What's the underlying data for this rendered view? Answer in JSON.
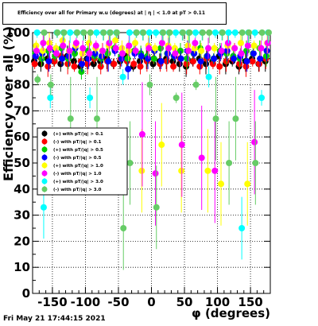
{
  "chart_data": {
    "type": "scatter",
    "title": "Efficiency over all for Primary w.u (degrees) at | η | < 1.0 at pT > 0.11",
    "xlabel": "φ (degrees)",
    "ylabel": "Efficiency over all (%)",
    "xlim": [
      -180,
      180
    ],
    "ylim": [
      0,
      100
    ],
    "x_ticks": [
      -150,
      -100,
      -50,
      0,
      50,
      100,
      150
    ],
    "y_ticks": [
      0,
      10,
      20,
      30,
      40,
      50,
      60,
      70,
      80,
      90,
      100
    ],
    "grid": true,
    "legend_position": "left-middle",
    "series": [
      {
        "name": "(+) with pT/|q| > 0.1",
        "color": "#000000",
        "x": [
          -175,
          -165,
          -155,
          -145,
          -135,
          -125,
          -115,
          -105,
          -95,
          -85,
          -75,
          -65,
          -55,
          -45,
          -35,
          -25,
          -15,
          -5,
          5,
          15,
          25,
          35,
          45,
          55,
          65,
          75,
          85,
          95,
          105,
          115,
          125,
          135,
          145,
          155,
          165,
          175
        ],
        "y": [
          89,
          88,
          90,
          89,
          88,
          91,
          89,
          87,
          90,
          88,
          89,
          90,
          88,
          89,
          91,
          87,
          89,
          90,
          88,
          89,
          90,
          89,
          88,
          87,
          89,
          90,
          88,
          89,
          91,
          88,
          89,
          87,
          89,
          90,
          88,
          89
        ]
      },
      {
        "name": "(-) with pT/|q| > 0.1",
        "color": "#ff0000",
        "x": [
          -175,
          -165,
          -155,
          -145,
          -135,
          -125,
          -115,
          -105,
          -95,
          -85,
          -75,
          -65,
          -55,
          -45,
          -35,
          -25,
          -15,
          -5,
          5,
          15,
          25,
          35,
          45,
          55,
          65,
          75,
          85,
          95,
          105,
          115,
          125,
          135,
          145,
          155,
          165,
          175
        ],
        "y": [
          88,
          90,
          87,
          89,
          91,
          88,
          87,
          89,
          88,
          90,
          87,
          89,
          88,
          90,
          89,
          88,
          87,
          89,
          90,
          88,
          89,
          87,
          90,
          88,
          89,
          87,
          90,
          88,
          87,
          89,
          90,
          88,
          87,
          89,
          88,
          90
        ]
      },
      {
        "name": "(+) with pT/|q| > 0.5",
        "color": "#00cc00",
        "x": [
          -175,
          -165,
          -155,
          -145,
          -135,
          -125,
          -115,
          -105,
          -95,
          -85,
          -75,
          -65,
          -55,
          -45,
          -35,
          -25,
          -15,
          -5,
          5,
          15,
          25,
          35,
          45,
          55,
          65,
          75,
          85,
          95,
          105,
          115,
          125,
          135,
          145,
          155,
          165,
          175
        ],
        "y": [
          92,
          90,
          93,
          91,
          94,
          90,
          92,
          85,
          93,
          91,
          90,
          92,
          94,
          91,
          90,
          93,
          92,
          91,
          90,
          94,
          92,
          91,
          93,
          90,
          92,
          94,
          91,
          90,
          93,
          92,
          91,
          90,
          93,
          92,
          94,
          91
        ]
      },
      {
        "name": "(-) with pT/|q| > 0.5",
        "color": "#0000ff",
        "x": [
          -175,
          -165,
          -155,
          -145,
          -135,
          -125,
          -115,
          -105,
          -95,
          -85,
          -75,
          -65,
          -55,
          -45,
          -35,
          -25,
          -15,
          -5,
          5,
          15,
          25,
          35,
          45,
          55,
          65,
          75,
          85,
          95,
          105,
          115,
          125,
          135,
          145,
          155,
          165,
          175
        ],
        "y": [
          91,
          92,
          89,
          93,
          90,
          91,
          94,
          88,
          90,
          92,
          91,
          89,
          93,
          90,
          86,
          92,
          91,
          90,
          93,
          89,
          92,
          91,
          90,
          93,
          92,
          89,
          91,
          90,
          92,
          93,
          90,
          91,
          89,
          92,
          90,
          93
        ]
      },
      {
        "name": "(+) with pT/|q| > 1.0",
        "color": "#ffff00",
        "x": [
          -175,
          -165,
          -155,
          -145,
          -135,
          -125,
          -115,
          -105,
          -95,
          -85,
          -75,
          -65,
          -55,
          -45,
          -35,
          -25,
          -15,
          -5,
          5,
          15,
          25,
          35,
          45,
          55,
          65,
          75,
          85,
          95,
          105,
          115,
          125,
          135,
          145,
          155,
          165,
          175
        ],
        "y": [
          95,
          93,
          96,
          94,
          97,
          93,
          95,
          92,
          96,
          94,
          93,
          95,
          97,
          94,
          93,
          96,
          47,
          95,
          94,
          57,
          95,
          94,
          47,
          95,
          94,
          93,
          47,
          94,
          42,
          95,
          94,
          96,
          42,
          95,
          94,
          96
        ]
      },
      {
        "name": "(-) with pT/|q| > 1.0",
        "color": "#ff00ff",
        "x": [
          -175,
          -165,
          -155,
          -145,
          -135,
          -125,
          -115,
          -105,
          -95,
          -85,
          -75,
          -65,
          -55,
          -45,
          -35,
          -25,
          -15,
          -5,
          5,
          15,
          25,
          35,
          45,
          55,
          65,
          75,
          85,
          95,
          105,
          115,
          125,
          135,
          145,
          155,
          165,
          175
        ],
        "y": [
          93,
          96,
          94,
          92,
          95,
          93,
          96,
          94,
          92,
          95,
          93,
          96,
          94,
          92,
          95,
          93,
          61,
          94,
          46,
          96,
          94,
          92,
          57,
          93,
          96,
          52,
          94,
          47,
          93,
          96,
          94,
          92,
          95,
          58,
          94,
          96
        ]
      },
      {
        "name": "(+) with pT/|q| > 3.0",
        "color": "#00ffff",
        "x": [
          -175,
          -165,
          -155,
          -145,
          -135,
          -125,
          -115,
          -105,
          -95,
          -85,
          -75,
          -65,
          -55,
          -45,
          -35,
          -25,
          -15,
          -5,
          5,
          15,
          25,
          35,
          45,
          55,
          65,
          75,
          85,
          95,
          105,
          115,
          125,
          135,
          145,
          155,
          165,
          175
        ],
        "y": [
          100,
          33,
          75,
          100,
          100,
          100,
          100,
          100,
          75,
          100,
          100,
          100,
          100,
          83,
          100,
          100,
          100,
          100,
          100,
          100,
          100,
          100,
          100,
          100,
          100,
          100,
          83,
          100,
          100,
          100,
          100,
          25,
          100,
          100,
          75,
          100
        ]
      },
      {
        "name": "(-) with pT/|q| > 3.0",
        "color": "#66cc66",
        "x": [
          -175,
          -165,
          -155,
          -145,
          -135,
          -125,
          -115,
          -105,
          -95,
          -85,
          -75,
          -65,
          -55,
          -45,
          -35,
          -25,
          -15,
          -5,
          5,
          15,
          25,
          35,
          45,
          55,
          65,
          75,
          85,
          95,
          105,
          115,
          125,
          135,
          145,
          155,
          165,
          175
        ],
        "y": [
          82,
          100,
          80,
          100,
          100,
          67,
          100,
          100,
          100,
          67,
          100,
          100,
          100,
          25,
          50,
          100,
          100,
          80,
          33,
          100,
          100,
          75,
          100,
          100,
          80,
          100,
          100,
          67,
          100,
          50,
          67,
          100,
          100,
          50,
          100,
          100
        ]
      }
    ]
  },
  "timestamp": "Fri May 21 17:44:15 2021"
}
